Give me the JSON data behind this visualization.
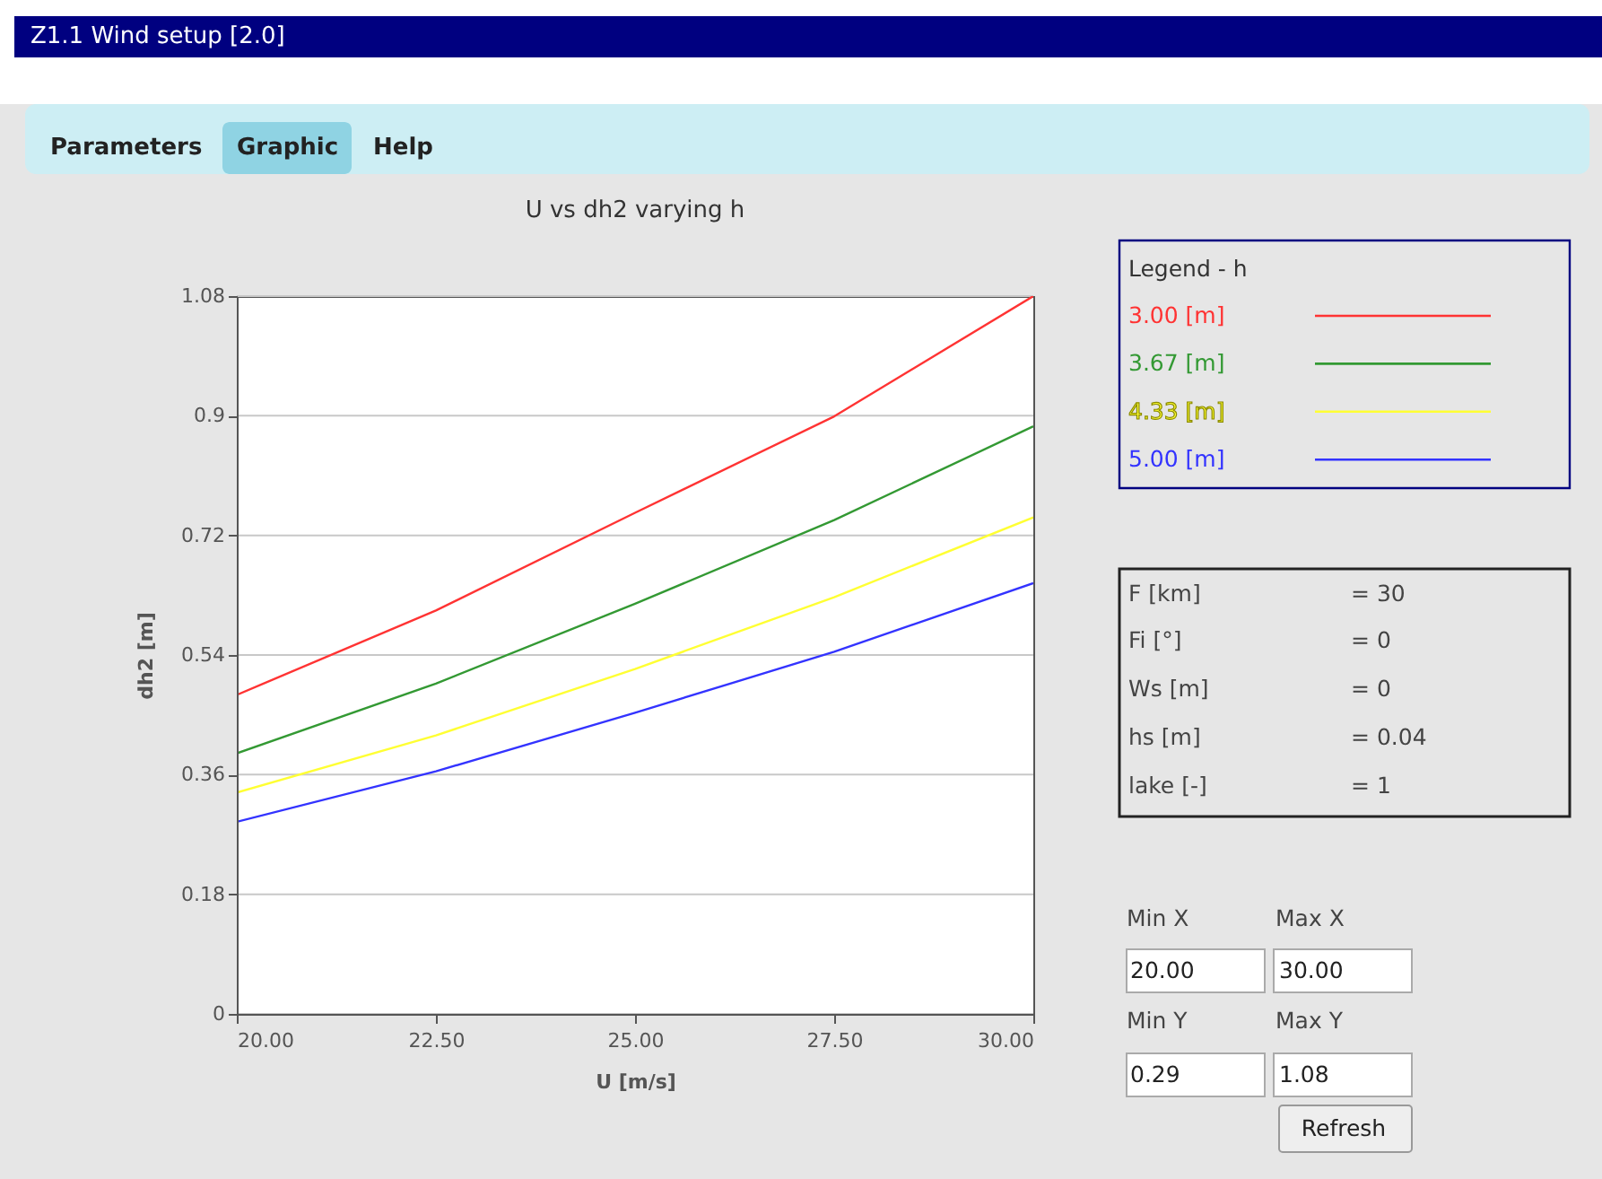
{
  "chart_data": {
    "type": "line",
    "title": "U vs dh2 varying h",
    "xlabel": "U [m/s]",
    "ylabel": "dh2 [m]",
    "legend_title": "Legend - h",
    "x": [
      20,
      22.5,
      25,
      27.5,
      30
    ],
    "series": [
      {
        "name": "3.00 [m]",
        "color": "#ff3333",
        "values": [
          0.48,
          0.607,
          0.754,
          0.899,
          1.08
        ]
      },
      {
        "name": "3.67 [m]",
        "color": "#339933",
        "values": [
          0.392,
          0.497,
          0.617,
          0.743,
          0.884
        ]
      },
      {
        "name": "4.33 [m]",
        "color": "#ffff33",
        "values": [
          0.333,
          0.419,
          0.519,
          0.627,
          0.747
        ]
      },
      {
        "name": "5.00 [m]",
        "color": "#3333ff",
        "values": [
          0.289,
          0.365,
          0.453,
          0.545,
          0.648
        ]
      }
    ],
    "xlim": [
      20,
      30
    ],
    "xticks": [
      {
        "value": 20,
        "label": "20.00"
      },
      {
        "value": 22.5,
        "label": "22.50"
      },
      {
        "value": 25,
        "label": "25.00"
      },
      {
        "value": 27.5,
        "label": "27.50"
      },
      {
        "value": 30,
        "label": "30.00"
      }
    ],
    "ylim": [
      0,
      1.08
    ],
    "yticks": [
      0,
      0.18,
      0.36,
      0.54,
      0.72,
      0.9,
      1.08
    ],
    "grid": "y",
    "legend": "right",
    "marker": "none",
    "line_style": "solid",
    "annotations": [
      "Z1.1 Wind setup [2.0]",
      "Parameters",
      "Graphic",
      "Help",
      "F [km]",
      "= 30",
      "Fi [°]",
      "= 0",
      "Ws [m]",
      "= 0",
      "hs [m]",
      "= 0.04",
      "lake [-]",
      "= 1",
      "Min X",
      "Max X",
      "20.00",
      "30.00",
      "Min Y",
      "Max Y",
      "0.29",
      "1.08",
      "Refresh"
    ]
  }
}
